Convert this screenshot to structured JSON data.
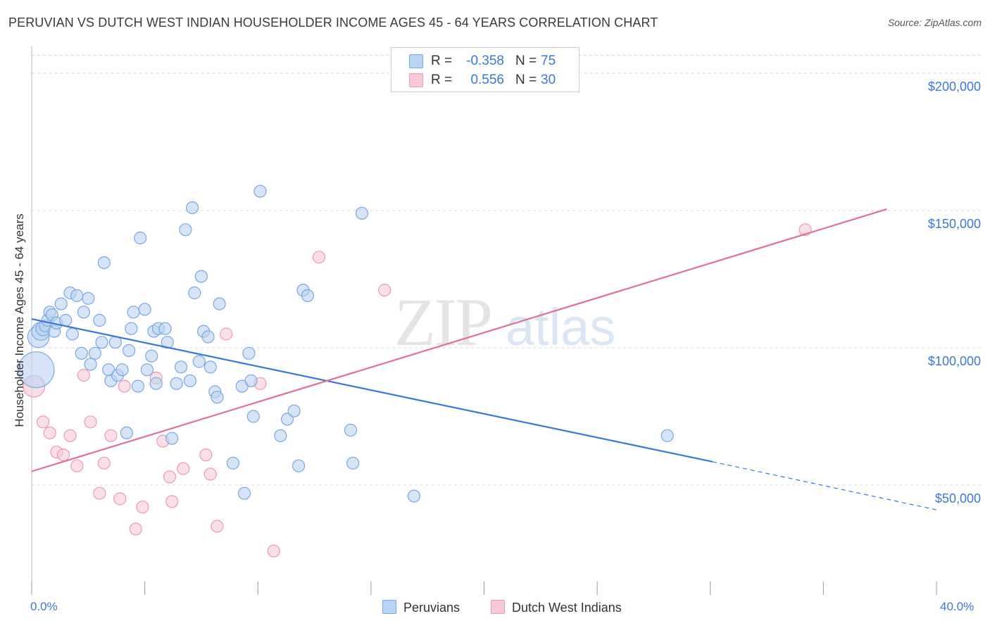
{
  "title": "PERUVIAN VS DUTCH WEST INDIAN HOUSEHOLDER INCOME AGES 45 - 64 YEARS CORRELATION CHART",
  "source": "Source: ZipAtlas.com",
  "watermark": {
    "zip": "ZIP",
    "atlas": "atlas"
  },
  "colors": {
    "blue": "#3a78d8",
    "blue_fill": "#b9d3f2",
    "blue_edge": "#7aa7e0",
    "pink": "#e07098",
    "pink_fill": "#f7c9d8",
    "pink_edge": "#ea9ab6",
    "axis_text": "#3b78d8",
    "grid": "#d8d8d8"
  },
  "legend": {
    "rows": [
      {
        "r_label": "R =",
        "r_value": "-0.358",
        "n_label": "N =",
        "n_value": "75",
        "color": "blue"
      },
      {
        "r_label": "R =",
        "r_value": "0.556",
        "n_label": "N =",
        "n_value": "30",
        "color": "pink"
      }
    ]
  },
  "bottom_legend": {
    "items": [
      "Peruvians",
      "Dutch West Indians"
    ]
  },
  "chart_data": {
    "type": "scatter",
    "xlabel": "",
    "ylabel": "Householder Income Ages 45 - 64 years",
    "xlim": [
      0,
      40
    ],
    "ylim": [
      10000,
      210000
    ],
    "x_tick_labels": [
      "0.0%",
      "40.0%"
    ],
    "y_ticks": [
      50000,
      100000,
      150000,
      200000
    ],
    "y_tick_labels": [
      "$50,000",
      "$100,000",
      "$150,000",
      "$200,000"
    ],
    "grid": true,
    "series": [
      {
        "name": "Peruvians",
        "color": "blue",
        "trend": {
          "x": [
            0,
            30.1
          ],
          "y": [
            110500,
            58500
          ],
          "dashed_to_x": 40,
          "dashed_to_y": 41000
        },
        "points": [
          [
            0.2,
            92000,
            3
          ],
          [
            0.3,
            104000,
            1.8
          ],
          [
            0.4,
            106000,
            1.5
          ],
          [
            0.5,
            107000,
            1.2
          ],
          [
            0.6,
            108000,
            1
          ],
          [
            0.7,
            110000,
            1
          ],
          [
            0.8,
            113000,
            1
          ],
          [
            0.9,
            112000,
            1
          ],
          [
            1.0,
            106000,
            1
          ],
          [
            1.1,
            109000,
            1
          ],
          [
            1.3,
            116000,
            1
          ],
          [
            1.5,
            110000,
            1
          ],
          [
            1.7,
            120000,
            1
          ],
          [
            1.8,
            105000,
            1
          ],
          [
            2.0,
            119000,
            1
          ],
          [
            2.2,
            98000,
            1
          ],
          [
            2.3,
            113000,
            1
          ],
          [
            2.5,
            118000,
            1
          ],
          [
            2.6,
            94000,
            1
          ],
          [
            2.8,
            98000,
            1
          ],
          [
            3.0,
            110000,
            1
          ],
          [
            3.1,
            102000,
            1
          ],
          [
            3.2,
            131000,
            1
          ],
          [
            3.4,
            92000,
            1
          ],
          [
            3.5,
            88000,
            1
          ],
          [
            3.7,
            102000,
            1
          ],
          [
            3.8,
            90000,
            1
          ],
          [
            4.0,
            92000,
            1
          ],
          [
            4.2,
            69000,
            1
          ],
          [
            4.3,
            99000,
            1
          ],
          [
            4.5,
            113000,
            1
          ],
          [
            4.4,
            107000,
            1
          ],
          [
            4.7,
            86000,
            1
          ],
          [
            4.8,
            140000,
            1
          ],
          [
            5.0,
            114000,
            1
          ],
          [
            5.1,
            92000,
            1
          ],
          [
            5.3,
            97000,
            1
          ],
          [
            5.4,
            106000,
            1
          ],
          [
            5.5,
            87000,
            1
          ],
          [
            5.6,
            107000,
            1
          ],
          [
            5.9,
            107000,
            1
          ],
          [
            6.0,
            102000,
            1
          ],
          [
            6.2,
            67000,
            1
          ],
          [
            6.4,
            87000,
            1
          ],
          [
            6.6,
            93000,
            1
          ],
          [
            6.8,
            143000,
            1
          ],
          [
            7.0,
            88000,
            1
          ],
          [
            7.1,
            151000,
            1
          ],
          [
            7.2,
            120000,
            1
          ],
          [
            7.4,
            95000,
            1
          ],
          [
            7.5,
            126000,
            1
          ],
          [
            7.6,
            106000,
            1
          ],
          [
            7.8,
            104000,
            1
          ],
          [
            7.9,
            93000,
            1
          ],
          [
            8.1,
            84000,
            1
          ],
          [
            8.2,
            82000,
            1
          ],
          [
            8.3,
            116000,
            1
          ],
          [
            8.9,
            58000,
            1
          ],
          [
            9.3,
            86000,
            1
          ],
          [
            9.4,
            47000,
            1
          ],
          [
            9.6,
            98000,
            1
          ],
          [
            9.7,
            88000,
            1
          ],
          [
            9.8,
            75000,
            1
          ],
          [
            10.1,
            157000,
            1
          ],
          [
            11.0,
            68000,
            1
          ],
          [
            11.3,
            74000,
            1
          ],
          [
            11.6,
            77000,
            1
          ],
          [
            11.8,
            57000,
            1
          ],
          [
            12.0,
            121000,
            1
          ],
          [
            12.2,
            119000,
            1
          ],
          [
            14.1,
            70000,
            1
          ],
          [
            14.2,
            58000,
            1
          ],
          [
            14.6,
            149000,
            1
          ],
          [
            16.9,
            46000,
            1
          ],
          [
            28.1,
            68000,
            1
          ]
        ]
      },
      {
        "name": "Dutch West Indians",
        "color": "pink",
        "trend": {
          "x": [
            0,
            37.8
          ],
          "y": [
            55000,
            150500
          ]
        },
        "points": [
          [
            0.1,
            86000,
            1.8
          ],
          [
            0.5,
            73000,
            1
          ],
          [
            0.8,
            69000,
            1
          ],
          [
            1.1,
            62000,
            1
          ],
          [
            1.4,
            61000,
            1
          ],
          [
            1.7,
            68000,
            1
          ],
          [
            2.0,
            57000,
            1
          ],
          [
            2.3,
            90000,
            1
          ],
          [
            2.6,
            73000,
            1
          ],
          [
            3.0,
            47000,
            1
          ],
          [
            3.2,
            58000,
            1
          ],
          [
            3.5,
            68000,
            1
          ],
          [
            3.9,
            45000,
            1
          ],
          [
            4.1,
            86000,
            1
          ],
          [
            4.6,
            34000,
            1
          ],
          [
            4.9,
            42000,
            1
          ],
          [
            5.5,
            89000,
            1
          ],
          [
            5.8,
            66000,
            1
          ],
          [
            6.1,
            53000,
            1
          ],
          [
            6.2,
            44000,
            1
          ],
          [
            6.7,
            56000,
            1
          ],
          [
            7.7,
            61000,
            1
          ],
          [
            7.9,
            54000,
            1
          ],
          [
            8.2,
            35000,
            1
          ],
          [
            8.6,
            105000,
            1
          ],
          [
            10.1,
            87000,
            1
          ],
          [
            10.7,
            26000,
            1
          ],
          [
            12.7,
            133000,
            1
          ],
          [
            15.6,
            121000,
            1
          ],
          [
            34.2,
            143000,
            1
          ]
        ]
      }
    ]
  }
}
